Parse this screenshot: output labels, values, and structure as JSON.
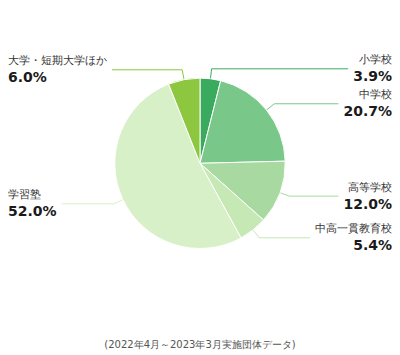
{
  "chart_data": {
    "type": "pie",
    "categories": [
      "小学校",
      "中学校",
      "高等学校",
      "中高一貫教育校",
      "学習塾",
      "大学・短期大学ほか"
    ],
    "values": [
      3.9,
      20.7,
      12.0,
      5.4,
      52.0,
      6.0
    ],
    "value_labels": [
      "3.9%",
      "20.7%",
      "12.0%",
      "5.4%",
      "52.0%",
      "6.0%"
    ],
    "colors": [
      "#3aab5e",
      "#79c88a",
      "#a8d9a0",
      "#c5e8b5",
      "#d8f0c8",
      "#8dc63f"
    ],
    "data_labels": true,
    "annotations": [
      "(2022年4月～2023年3月実施団体データ)"
    ]
  }
}
